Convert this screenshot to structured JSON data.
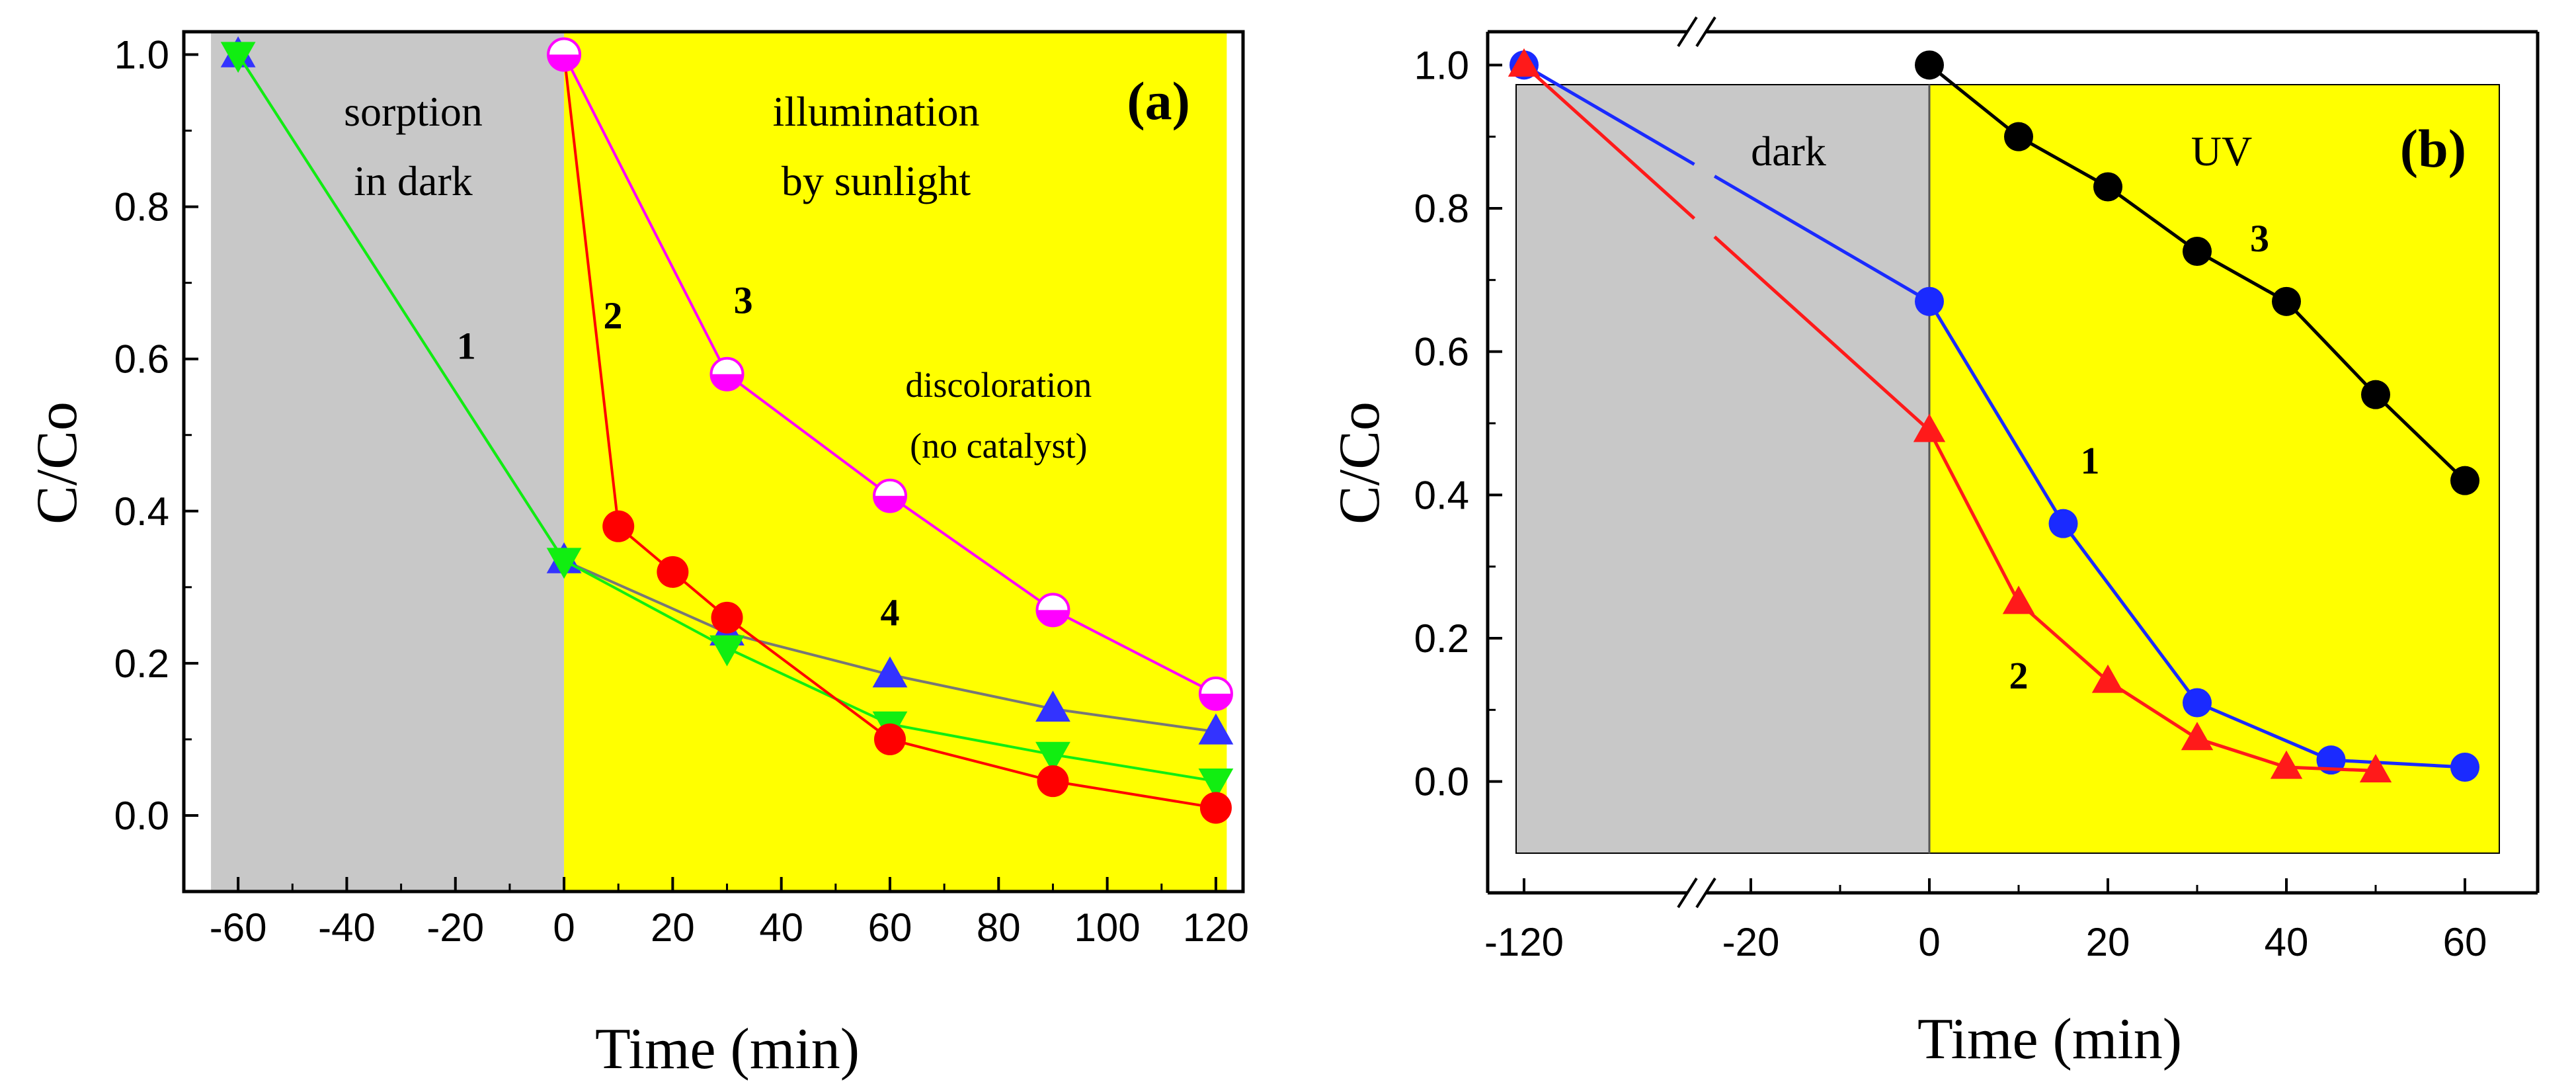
{
  "chart_data": [
    {
      "panel_label": "(a)",
      "type": "line",
      "xlabel": "Time (min)",
      "ylabel": "C/Co",
      "xlim": [
        -70,
        125
      ],
      "ylim": [
        -0.1,
        1.03
      ],
      "xticks": [
        -60,
        -40,
        -20,
        0,
        20,
        40,
        60,
        80,
        100,
        120
      ],
      "yticks": [
        0.0,
        0.2,
        0.4,
        0.6,
        0.8,
        1.0
      ],
      "xtick_labels": [
        "-60",
        "-40",
        "-20",
        "0",
        "20",
        "40",
        "60",
        "80",
        "100",
        "120"
      ],
      "ytick_labels": [
        "0.0",
        "0.2",
        "0.4",
        "0.6",
        "0.8",
        "1.0"
      ],
      "regions": [
        {
          "x0": -65,
          "x1": 0,
          "color": "#c8c8c8",
          "lines": [
            "sorption",
            "in dark"
          ]
        },
        {
          "x0": 0,
          "x1": 122,
          "color": "#ffff00",
          "lines": [
            "illumination",
            "by sunlight"
          ]
        }
      ],
      "series": [
        {
          "name": "1",
          "color": "#22aa88",
          "marker": "none",
          "x": [
            -60,
            0
          ],
          "y": [
            1.0,
            0.335
          ]
        },
        {
          "name": "2",
          "color": "#ff0000",
          "marker": "circle",
          "x": [
            0,
            10,
            20,
            30,
            60,
            90,
            120
          ],
          "y": [
            1.0,
            0.38,
            0.32,
            0.26,
            0.1,
            0.045,
            0.01
          ]
        },
        {
          "name": "3",
          "color": "#ff00ff",
          "marker": "halfcircle",
          "x": [
            0,
            30,
            60,
            90,
            120
          ],
          "y": [
            1.0,
            0.58,
            0.42,
            0.27,
            0.16
          ]
        },
        {
          "name": "4",
          "color": "#3333ff",
          "line_color": "#777777",
          "marker": "triangle-up",
          "x": [
            -60,
            0,
            30,
            60,
            90,
            120
          ],
          "y": [
            1.0,
            0.335,
            0.24,
            0.185,
            0.14,
            0.11
          ]
        },
        {
          "name": "green",
          "color": "#11ee11",
          "marker": "triangle-down",
          "x": [
            -60,
            0,
            30,
            60,
            90,
            120
          ],
          "y": [
            1.0,
            0.335,
            0.22,
            0.12,
            0.08,
            0.045
          ]
        }
      ],
      "annotations": [
        {
          "text": "1",
          "x": -18,
          "y": 0.6
        },
        {
          "text": "2",
          "x": 9,
          "y": 0.64
        },
        {
          "text": "3",
          "x": 33,
          "y": 0.66
        },
        {
          "text": "4",
          "x": 60,
          "y": 0.25
        },
        {
          "text": "discoloration",
          "x": 80,
          "y": 0.55
        },
        {
          "text": "(no catalyst)",
          "x": 80,
          "y": 0.47
        }
      ]
    },
    {
      "panel_label": "(b)",
      "type": "line",
      "xlabel": "Time (min)",
      "ylabel": "C/Co",
      "x_axis_break": "between -120 and -20",
      "ylim": [
        -0.1,
        1.1
      ],
      "xtick_labels": [
        "-120",
        "-20",
        "0",
        "20",
        "40",
        "60"
      ],
      "yticks": [
        0.0,
        0.2,
        0.4,
        0.6,
        0.8,
        1.0
      ],
      "ytick_labels": [
        "0.0",
        "0.2",
        "0.4",
        "0.6",
        "0.8",
        "1.0"
      ],
      "regions": [
        {
          "label": "dark",
          "color": "#c8c8c8"
        },
        {
          "label": "UV",
          "color": "#ffff00"
        }
      ],
      "series": [
        {
          "name": "1",
          "color": "#1a2aff",
          "marker": "circle",
          "x": [
            -120,
            0,
            15,
            30,
            45,
            60
          ],
          "y": [
            1.0,
            0.67,
            0.36,
            0.11,
            0.03,
            0.02
          ]
        },
        {
          "name": "2",
          "color": "#ff1a1a",
          "marker": "triangle-up",
          "x": [
            -120,
            0,
            10,
            20,
            30,
            40,
            50
          ],
          "y": [
            1.0,
            0.49,
            0.25,
            0.14,
            0.06,
            0.02,
            0.015
          ]
        },
        {
          "name": "3",
          "color": "#000000",
          "marker": "circle",
          "x": [
            0,
            10,
            20,
            30,
            40,
            50,
            60
          ],
          "y": [
            1.0,
            0.9,
            0.83,
            0.74,
            0.67,
            0.54,
            0.42
          ]
        }
      ],
      "annotations": [
        {
          "text": "1",
          "x": 18,
          "y": 0.43
        },
        {
          "text": "2",
          "x": 10,
          "y": 0.13
        },
        {
          "text": "3",
          "x": 37,
          "y": 0.74
        }
      ]
    }
  ]
}
